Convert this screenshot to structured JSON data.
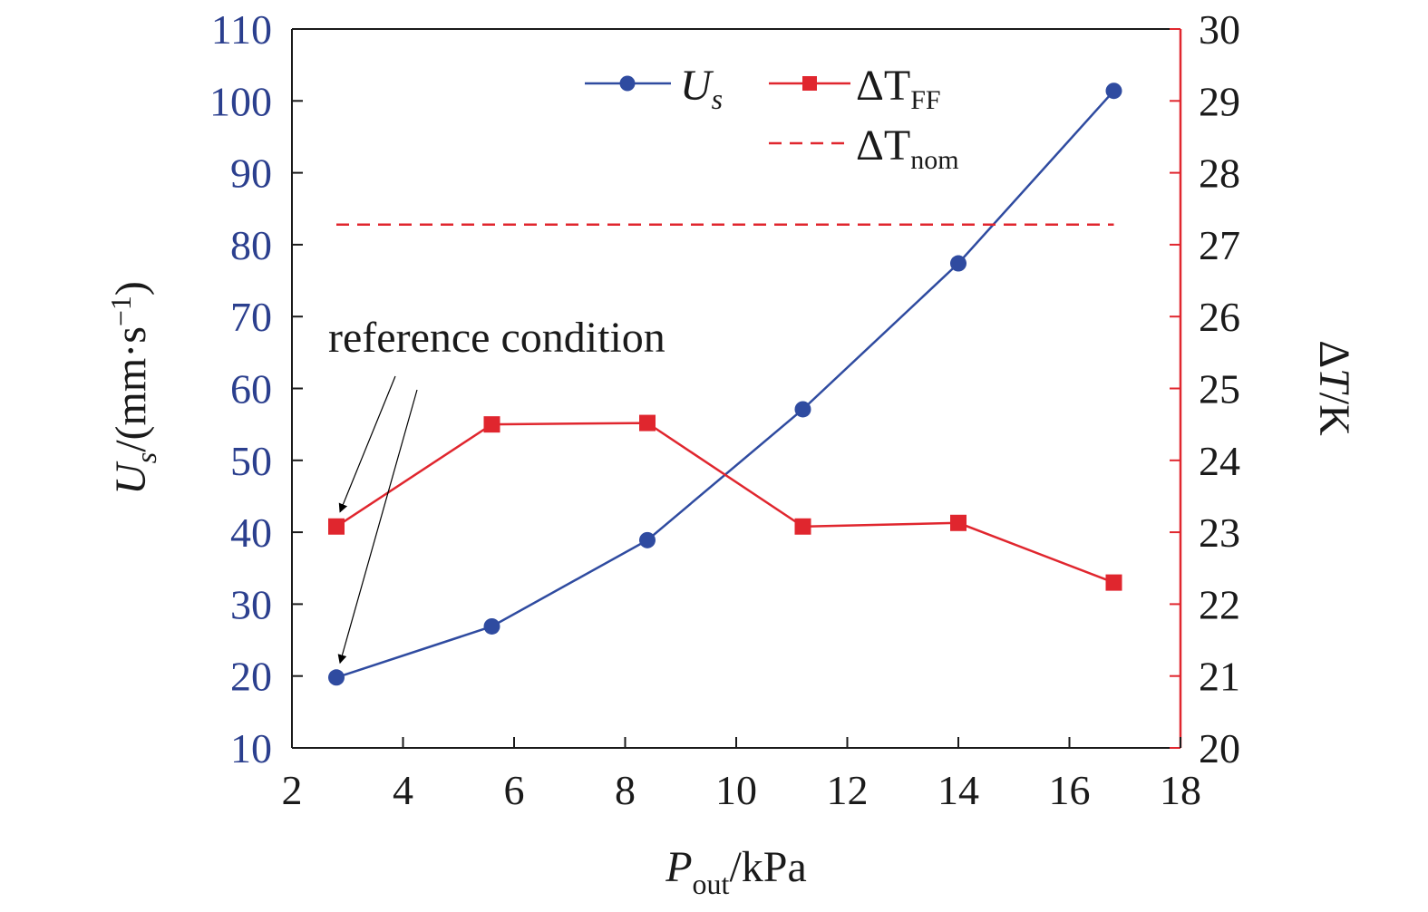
{
  "chart_data": {
    "type": "line",
    "x": [
      2.8,
      5.6,
      8.4,
      11.2,
      14.0,
      16.8
    ],
    "xlim": [
      2,
      18
    ],
    "xticks": [
      2,
      4,
      6,
      8,
      10,
      12,
      14,
      16,
      18
    ],
    "xlabel": {
      "main": "P",
      "sub": "out",
      "rest": "/kPa"
    },
    "y_left": {
      "label": {
        "main": "U",
        "sub": "s",
        "rest": "/(mm·s",
        "sup": "−1",
        "close": ")"
      },
      "lim": [
        10,
        110
      ],
      "ticks": [
        10,
        20,
        30,
        40,
        50,
        60,
        70,
        80,
        90,
        100,
        110
      ]
    },
    "y_right": {
      "label": {
        "delta": "Δ",
        "main": "T",
        "rest": "/K"
      },
      "lim": [
        20,
        30
      ],
      "ticks": [
        20,
        21,
        22,
        23,
        24,
        25,
        26,
        27,
        28,
        29,
        30
      ]
    },
    "series": [
      {
        "name": "U",
        "name_sub": "s",
        "axis": "left",
        "marker": "circle",
        "color": "#2f4ba0",
        "values": [
          19.8,
          26.9,
          38.9,
          57.1,
          77.4,
          101.4
        ]
      },
      {
        "name": "ΔT",
        "name_sub": "FF",
        "axis": "right",
        "marker": "square",
        "color": "#e0262e",
        "values": [
          23.08,
          24.5,
          24.52,
          23.08,
          23.13,
          22.3
        ]
      },
      {
        "name": "ΔT",
        "name_sub": "nom",
        "axis": "right",
        "style": "dashed",
        "color": "#e0262e",
        "x": [
          2.8,
          16.8
        ],
        "values": [
          27.28,
          27.28
        ]
      }
    ],
    "annotation": {
      "text": "reference condition",
      "targets": [
        {
          "series": 1,
          "index": 0
        },
        {
          "series": 0,
          "index": 0
        }
      ]
    },
    "legend_placement": "top-center",
    "grid": false
  }
}
